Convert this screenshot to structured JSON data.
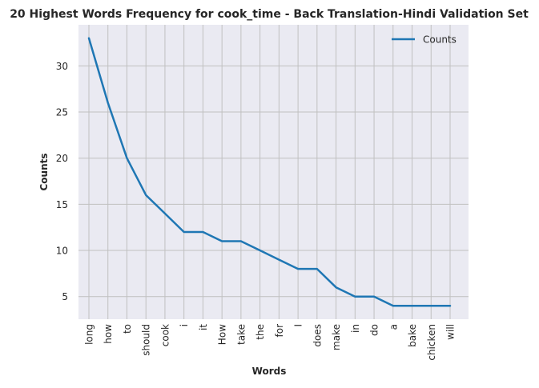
{
  "chart_data": {
    "type": "line",
    "title": "20 Highest Words Frequency for cook_time - Back Translation-Hindi Validation Set",
    "xlabel": "Words",
    "ylabel": "Counts",
    "categories": [
      "long",
      "how",
      "to",
      "should",
      "cook",
      "i",
      "it",
      "How",
      "take",
      "the",
      "for",
      "I",
      "does",
      "make",
      "in",
      "do",
      "a",
      "bake",
      "chicken",
      "will"
    ],
    "series": [
      {
        "name": "Counts",
        "values": [
          33,
          26,
          20,
          16,
          14,
          12,
          12,
          11,
          11,
          10,
          9,
          8,
          8,
          6,
          5,
          5,
          4,
          4,
          4,
          4
        ],
        "color": "#1f77b4"
      }
    ],
    "ylim": [
      2.55,
      34.45
    ],
    "yticks": [
      5,
      10,
      15,
      20,
      25,
      30
    ],
    "grid": true,
    "legend_position": "top-right",
    "background_color": "#eaeaf2",
    "grid_color": "#c0c0c0"
  }
}
